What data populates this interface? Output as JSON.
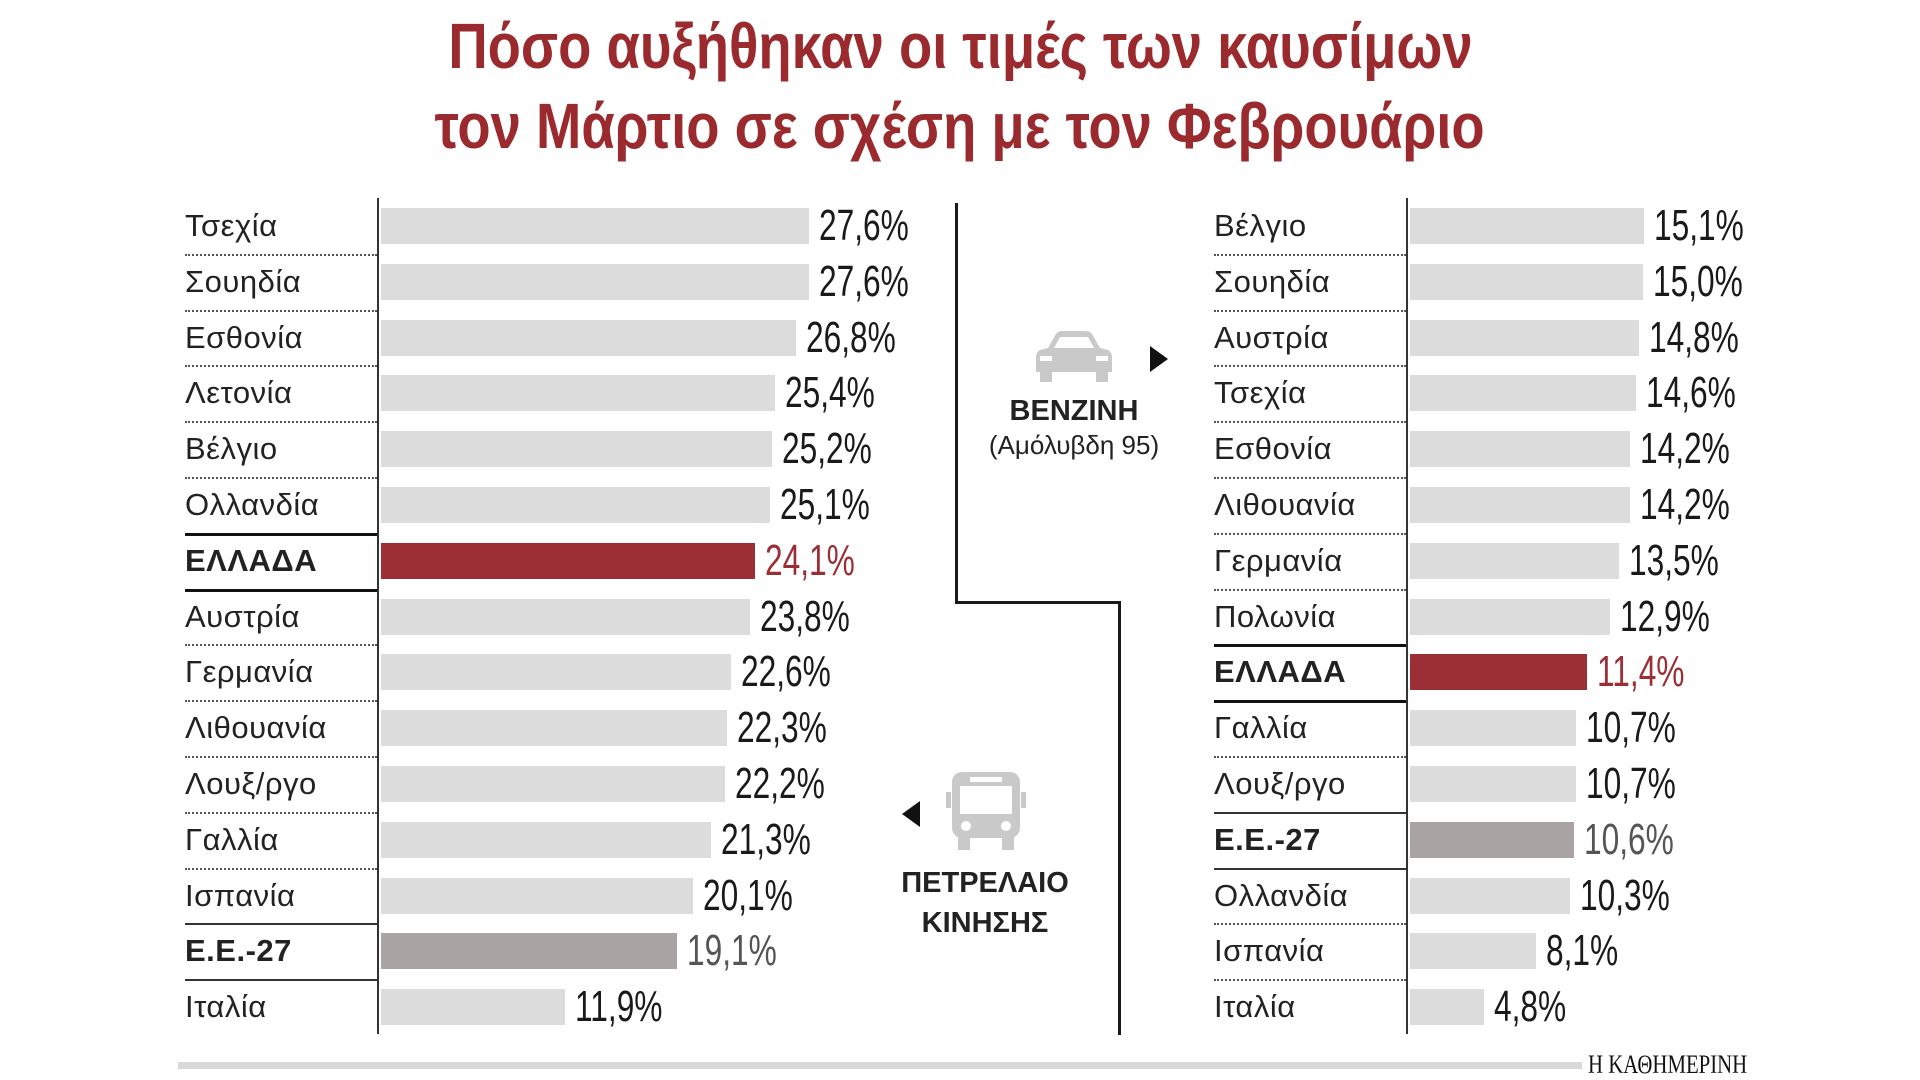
{
  "title": {
    "line1": "Πόσο αυξήθηκαν οι τιμές των καυσίμων",
    "line2": "τον Μάρτιο σε σχέση με τον Φεβρουάριο"
  },
  "fuel_left": {
    "name": "ΒΕΝΖΙΝΗ",
    "sub": "(Αμόλυβδη 95)",
    "icon": "car-icon"
  },
  "fuel_right": {
    "line1": "ΠΕΤΡΕΛΑΙΟ",
    "line2": "ΚΙΝΗΣΗΣ",
    "icon": "bus-icon"
  },
  "source": "Η ΚΑΘΗΜΕΡΙΝΗ",
  "colors": {
    "bar": "#dcdcdd",
    "greece": "#9b2f35",
    "eu": "#aaa3a3"
  },
  "chart_data": [
    {
      "type": "bar",
      "orientation": "horizontal",
      "title": "ΒΕΝΖΙΝΗ (Αμόλυβδη 95)",
      "unit": "%",
      "categories": [
        "Τσεχία",
        "Σουηδία",
        "Εσθονία",
        "Λετονία",
        "Βέλγιο",
        "Ολλανδία",
        "ΕΛΛΑΔΑ",
        "Αυστρία",
        "Γερμανία",
        "Λιθουανία",
        "Λουξ/ργο",
        "Γαλλία",
        "Ισπανία",
        "Ε.Ε.-27",
        "Ιταλία"
      ],
      "values": [
        27.6,
        27.6,
        26.8,
        25.4,
        25.2,
        25.1,
        24.1,
        23.8,
        22.6,
        22.3,
        22.2,
        21.3,
        20.1,
        19.1,
        11.9
      ],
      "labels": [
        "27,6%",
        "27,6%",
        "26,8%",
        "25,4%",
        "25,2%",
        "25,1%",
        "24,1%",
        "23,8%",
        "22,6%",
        "22,3%",
        "22,2%",
        "21,3%",
        "20,1%",
        "19,1%",
        "11,9%"
      ]
    },
    {
      "type": "bar",
      "orientation": "horizontal",
      "title": "ΠΕΤΡΕΛΑΙΟ ΚΙΝΗΣΗΣ",
      "unit": "%",
      "categories": [
        "Βέλγιο",
        "Σουηδία",
        "Αυστρία",
        "Τσεχία",
        "Εσθονία",
        "Λιθουανία",
        "Γερμανία",
        "Πολωνία",
        "ΕΛΛΑΔΑ",
        "Γαλλία",
        "Λουξ/ργο",
        "Ε.Ε.-27",
        "Ολλανδία",
        "Ισπανία",
        "Ιταλία"
      ],
      "values": [
        15.1,
        15.0,
        14.8,
        14.6,
        14.2,
        14.2,
        13.5,
        12.9,
        11.4,
        10.7,
        10.7,
        10.6,
        10.3,
        8.1,
        4.8
      ],
      "labels": [
        "15,1%",
        "15,0%",
        "14,8%",
        "14,6%",
        "14,2%",
        "14,2%",
        "13,5%",
        "12,9%",
        "11,4%",
        "10,7%",
        "10,7%",
        "10,6%",
        "10,3%",
        "8,1%",
        "4,8%"
      ]
    }
  ]
}
